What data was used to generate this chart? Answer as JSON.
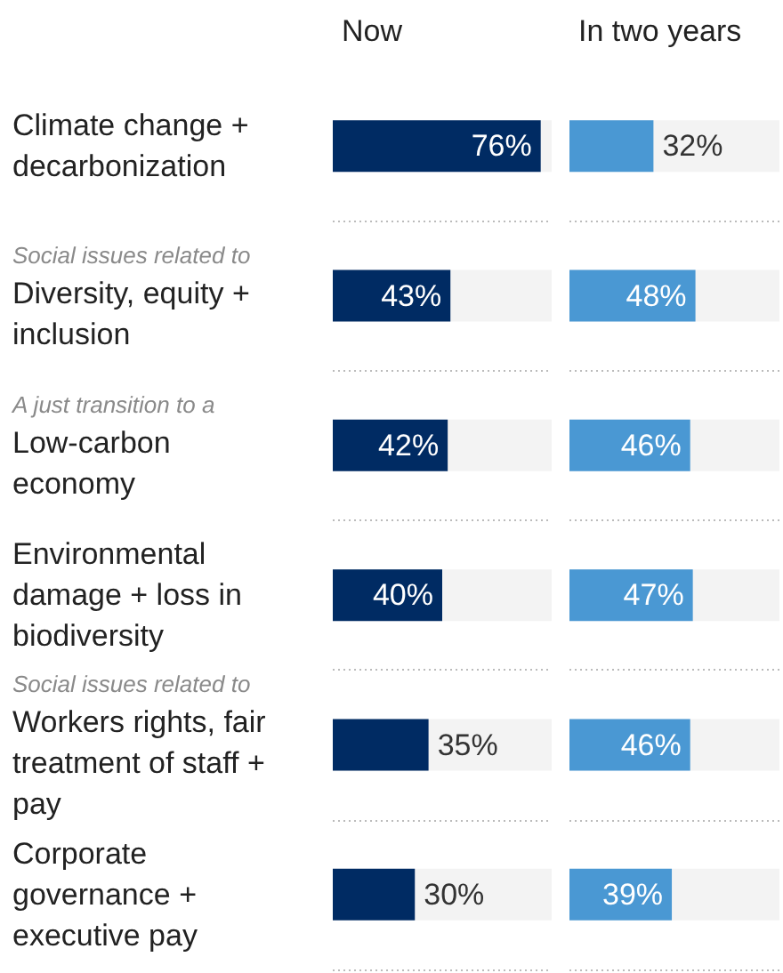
{
  "chart_data": [
    {
      "type": "bar",
      "orientation": "horizontal",
      "title": "Now",
      "categories": [
        "Climate change + decarbonization",
        "Social issues related to\nDiversity, equity + inclusion",
        "A just transition to a\nLow-carbon economy",
        "Environmental damage + loss in biodiversity",
        "Social issues related to\nWorkers rights, fair treatment of staff + pay",
        "Corporate governance + executive pay"
      ],
      "values": [
        76,
        43,
        42,
        40,
        35,
        30
      ],
      "value_labels": [
        "76%",
        "43%",
        "42%",
        "40%",
        "35%",
        "30%"
      ],
      "color": "#002b63",
      "xlim": [
        0,
        80
      ],
      "tick_labels": "y",
      "grid": "y"
    },
    {
      "type": "bar",
      "orientation": "horizontal",
      "title": "In two years",
      "categories": [
        null,
        null,
        null,
        null,
        null,
        null
      ],
      "values": [
        32,
        48,
        46,
        47,
        46,
        39
      ],
      "value_labels": [
        "32%",
        "48%",
        "46%",
        "47%",
        "46%",
        "39%"
      ],
      "color": "#4a98d3",
      "xlim": [
        0,
        80
      ],
      "tick_labels": false,
      "grid": "y"
    }
  ]
}
